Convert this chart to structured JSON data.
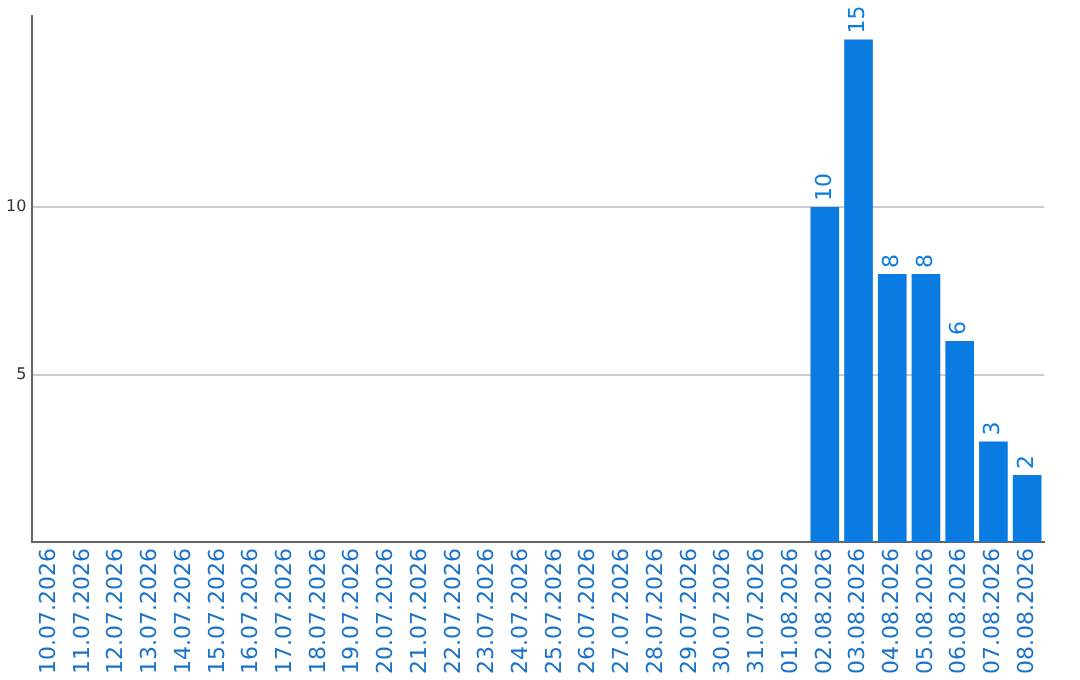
{
  "chart_data": {
    "type": "bar",
    "categories": [
      "10.07.2026",
      "11.07.2026",
      "12.07.2026",
      "13.07.2026",
      "14.07.2026",
      "15.07.2026",
      "16.07.2026",
      "17.07.2026",
      "18.07.2026",
      "19.07.2026",
      "20.07.2026",
      "21.07.2026",
      "22.07.2026",
      "23.07.2026",
      "24.07.2026",
      "25.07.2026",
      "26.07.2026",
      "27.07.2026",
      "28.07.2026",
      "29.07.2026",
      "30.07.2026",
      "31.07.2026",
      "01.08.2026",
      "02.08.2026",
      "03.08.2026",
      "04.08.2026",
      "05.08.2026",
      "06.08.2026",
      "07.08.2026",
      "08.08.2026"
    ],
    "values": [
      0,
      0,
      0,
      0,
      0,
      0,
      0,
      0,
      0,
      0,
      0,
      0,
      0,
      0,
      0,
      0,
      0,
      0,
      0,
      0,
      0,
      0,
      0,
      10,
      15,
      8,
      8,
      6,
      3,
      2
    ],
    "value_labels": [
      null,
      null,
      null,
      null,
      null,
      null,
      null,
      null,
      null,
      null,
      null,
      null,
      null,
      null,
      null,
      null,
      null,
      null,
      null,
      null,
      null,
      null,
      null,
      "10",
      "15",
      "8",
      "8",
      "6",
      "3",
      "2"
    ],
    "color": "#0a7be0",
    "ylim": [
      0,
      15.7
    ],
    "yticks": [
      5,
      10
    ],
    "grid": "y",
    "legend": false
  }
}
